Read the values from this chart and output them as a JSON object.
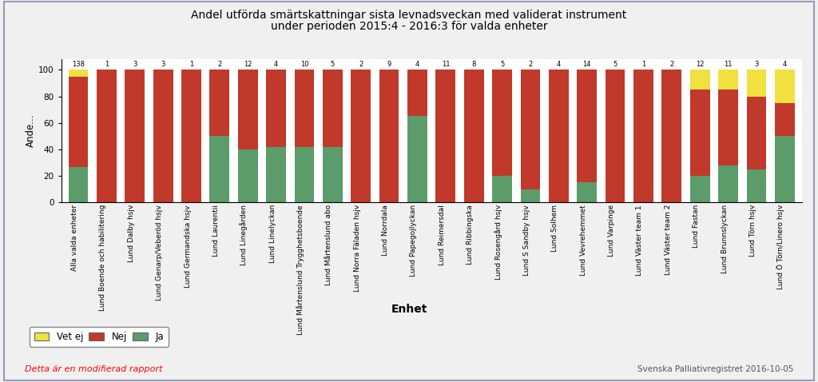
{
  "title_line1": "Andel utförda smärtskattningar sista levnadsveckan med validerat instrument",
  "title_line2": "under perioden 2015:4 - 2016:3 för valda enheter",
  "ylabel": "Ande...",
  "xlabel": "Enhet",
  "categories": [
    "Alla valda enheter",
    "Lund Boende och habilitering",
    "Lund Dalby hsjv",
    "Lund Genarp/Veberöd hsjv",
    "Lund Germandska hsjv",
    "Lund Laurentii",
    "Lund Linegården",
    "Lund Linelyckan",
    "Lund Mårtenslund Trygghetsboende",
    "Lund Mårtenslund abo",
    "Lund Norra Fäladen hsjv",
    "Lund Norrdala",
    "Lund Papegojlyckan",
    "Lund Reimersdal",
    "Lund Ribbingska",
    "Lund Rosengård hsjv",
    "Lund S Sandby hsjv",
    "Lund Solhem",
    "Lund Vevrehemmet",
    "Lund Varpinge",
    "Lund Väster team 1",
    "Lund Väster team 2",
    "Lund Fastan",
    "Lund Brunnslyckan",
    "Lund Törn hsjv",
    "Lund Ö Törn/Linero hsjv"
  ],
  "counts": [
    138,
    1,
    3,
    3,
    1,
    2,
    12,
    4,
    10,
    5,
    2,
    9,
    4,
    11,
    8,
    5,
    2,
    4,
    14,
    5,
    1,
    2,
    12,
    11,
    3,
    4
  ],
  "ja_pct": [
    27,
    0,
    0,
    0,
    0,
    50,
    40,
    42,
    42,
    42,
    0,
    0,
    65,
    0,
    0,
    20,
    10,
    0,
    15,
    0,
    0,
    0,
    20,
    28,
    25,
    50
  ],
  "nej_pct": [
    68,
    100,
    100,
    100,
    100,
    50,
    60,
    58,
    58,
    58,
    100,
    100,
    35,
    100,
    100,
    80,
    90,
    100,
    85,
    100,
    100,
    100,
    65,
    57,
    55,
    25
  ],
  "vetej_pct": [
    5,
    0,
    0,
    0,
    0,
    0,
    0,
    0,
    0,
    0,
    0,
    0,
    0,
    0,
    0,
    0,
    0,
    0,
    0,
    0,
    0,
    0,
    15,
    15,
    20,
    25
  ],
  "color_ja": "#5b9c6a",
  "color_nej": "#c0392b",
  "color_vetej": "#f0e040",
  "bg_color": "#f0f0f0",
  "plot_bg": "#ffffff",
  "footnote_left": "Detta är en modifierad rapport",
  "footnote_right": "Svenska Palliativregistret 2016-10-05",
  "ylim": [
    0,
    100
  ],
  "yticks": [
    0,
    20,
    40,
    60,
    80,
    100
  ]
}
